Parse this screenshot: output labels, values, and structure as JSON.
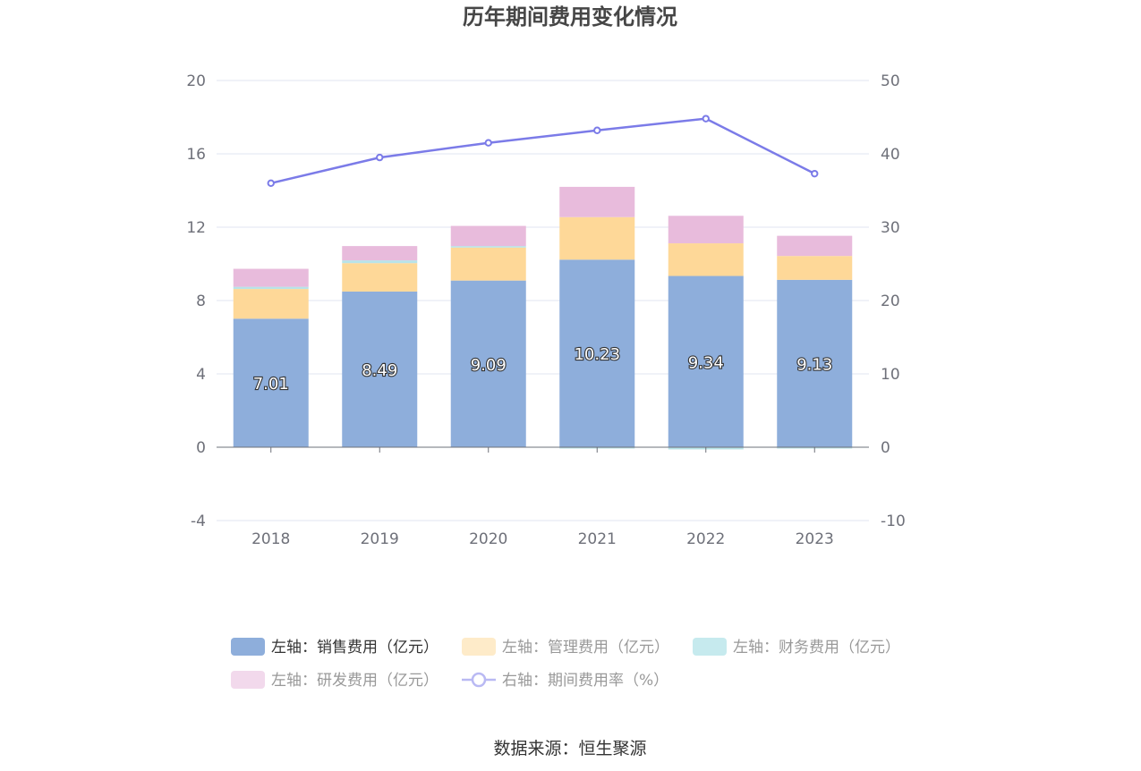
{
  "chart_data": {
    "type": "bar",
    "title": "历年期间费用变化情况",
    "categories": [
      "2018",
      "2019",
      "2020",
      "2021",
      "2022",
      "2023"
    ],
    "stacked": true,
    "series": [
      {
        "name": "左轴：销售费用（亿元）",
        "axis": "left",
        "color": "#8eaedb",
        "values": [
          7.01,
          8.49,
          9.09,
          10.23,
          9.34,
          9.13
        ],
        "labeled": true
      },
      {
        "name": "左轴：管理费用（亿元）",
        "axis": "left",
        "color": "#fed898",
        "values": [
          1.62,
          1.55,
          1.8,
          2.32,
          1.78,
          1.3
        ]
      },
      {
        "name": "左轴：财务费用（亿元）",
        "axis": "left",
        "color": "#b8e3e8",
        "values": [
          0.12,
          0.15,
          0.08,
          -0.05,
          -0.12,
          -0.05
        ]
      },
      {
        "name": "左轴：研发费用（亿元）",
        "axis": "left",
        "color": "#e8bbdc",
        "values": [
          0.98,
          0.78,
          1.1,
          1.65,
          1.5,
          1.1
        ]
      },
      {
        "name": "右轴：期间费用率（%）",
        "axis": "right",
        "type": "line",
        "color": "#7b7be8",
        "values": [
          36.0,
          39.5,
          41.5,
          43.2,
          44.8,
          37.3
        ]
      }
    ],
    "yleft": {
      "min": -4,
      "max": 20,
      "ticks": [
        "20",
        "16",
        "12",
        "8",
        "4",
        "0",
        "-4"
      ]
    },
    "yright": {
      "min": -10,
      "max": 50,
      "ticks": [
        "50",
        "40",
        "30",
        "20",
        "10",
        "0",
        "-10"
      ]
    },
    "grid": true,
    "legend_position": "bottom",
    "legend": [
      {
        "label": "左轴：销售费用（亿元）",
        "color": "#8eaedb",
        "text_color": "#333333",
        "shape": "rect"
      },
      {
        "label": "左轴：管理费用（亿元）",
        "color": "#feebc9",
        "text_color": "#999999",
        "shape": "rect"
      },
      {
        "label": "左轴：财务费用（亿元）",
        "color": "#c6eaee",
        "text_color": "#999999",
        "shape": "rect"
      },
      {
        "label": "左轴：研发费用（亿元）",
        "color": "#f2d9ec",
        "text_color": "#999999",
        "shape": "rect"
      },
      {
        "label": "右轴：期间费用率（%）",
        "color": "#b9b9f3",
        "text_color": "#999999",
        "shape": "line"
      }
    ]
  },
  "source": "数据来源：恒生聚源"
}
